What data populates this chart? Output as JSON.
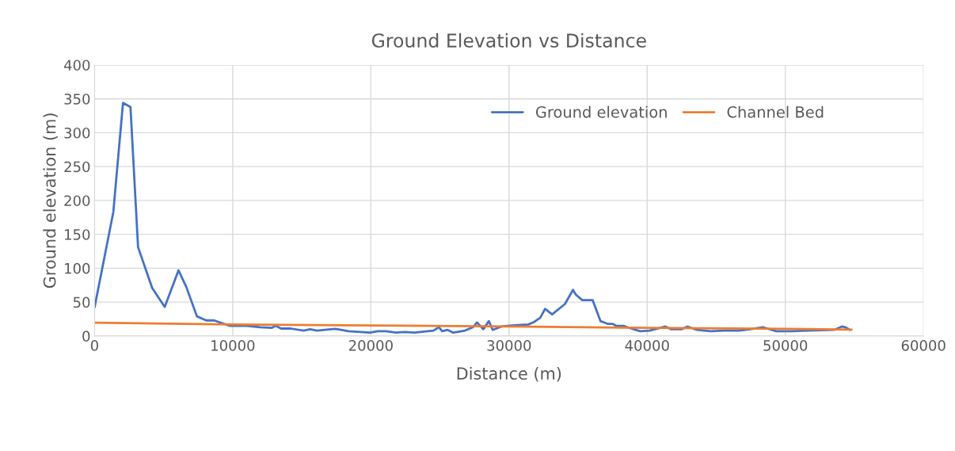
{
  "chart_data": {
    "type": "line",
    "title": "Ground Elevation vs Distance",
    "xlabel": "Distance (m)",
    "ylabel": "Ground elevation (m)",
    "xlim": [
      0,
      60000
    ],
    "xticks": [
      0,
      10000,
      20000,
      30000,
      40000,
      50000,
      60000
    ],
    "ylim": [
      0,
      400
    ],
    "yticks": [
      0,
      50,
      100,
      150,
      200,
      250,
      300,
      350,
      400
    ],
    "grid": true,
    "legend": "top",
    "marker": "none",
    "line_style": "solid",
    "series": [
      {
        "name": "Ground elevation",
        "color": "#4472c4",
        "x": [
          0,
          1360,
          2060,
          2600,
          3150,
          4170,
          5080,
          6080,
          6650,
          7410,
          8080,
          8650,
          9800,
          11000,
          12000,
          12840,
          13100,
          13500,
          14200,
          15130,
          15600,
          16100,
          16680,
          17420,
          18400,
          19940,
          20500,
          21090,
          21830,
          22500,
          23150,
          24530,
          24930,
          25160,
          25560,
          25960,
          26820,
          27390,
          27680,
          28140,
          28540,
          28820,
          29450,
          29860,
          30610,
          31400,
          31750,
          32260,
          32610,
          33120,
          34040,
          34630,
          34840,
          35300,
          36050,
          36620,
          37130,
          37480,
          37760,
          38280,
          38850,
          39490,
          40170,
          41320,
          41720,
          42470,
          42920,
          43610,
          44580,
          45500,
          46650,
          47450,
          48370,
          49340,
          50490,
          51640,
          53530,
          54100,
          54330,
          54670
        ],
        "values": [
          42,
          183,
          344,
          338,
          131,
          71,
          43,
          97,
          72,
          29,
          23,
          23,
          15,
          15,
          13,
          12,
          15,
          11,
          11,
          8,
          10,
          8,
          9,
          10.5,
          7,
          5,
          7,
          7,
          5,
          6,
          5,
          8,
          13,
          7,
          9,
          5,
          8,
          13,
          20,
          10,
          22,
          9,
          14,
          15,
          16,
          17,
          20,
          27,
          40,
          32,
          47,
          68,
          61,
          53,
          53,
          22,
          18,
          18,
          15,
          15,
          11,
          7,
          8,
          14,
          10,
          10,
          14,
          9,
          7,
          8,
          8,
          10,
          13,
          7,
          7,
          8,
          9,
          14,
          13,
          9
        ]
      },
      {
        "name": "Channel Bed",
        "color": "#ed7d31",
        "x": [
          0,
          10000,
          20000,
          30000,
          40000,
          50000,
          54800
        ],
        "values": [
          19.5,
          17,
          15.5,
          14,
          12,
          10.5,
          9.5
        ]
      }
    ]
  }
}
